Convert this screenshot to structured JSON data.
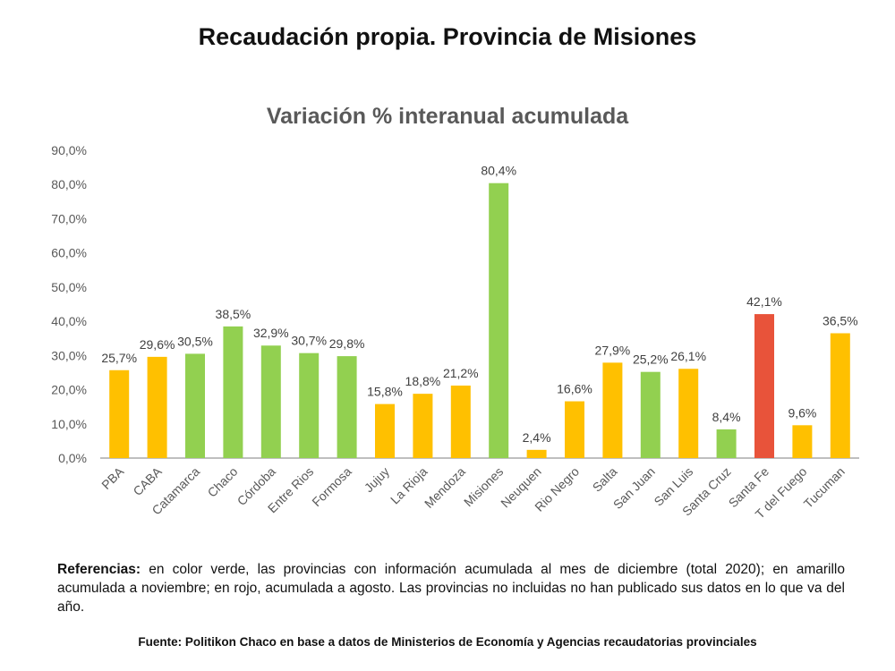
{
  "header": {
    "title": "Recaudación propia. Provincia de Misiones"
  },
  "chart_data": {
    "type": "bar",
    "title": "Variación % interanual acumulada",
    "xlabel": "",
    "ylabel": "",
    "ylim": [
      0,
      90
    ],
    "yticks": [
      "0,0%",
      "10,0%",
      "20,0%",
      "30,0%",
      "40,0%",
      "50,0%",
      "60,0%",
      "70,0%",
      "80,0%",
      "90,0%"
    ],
    "categories": [
      "PBA",
      "CABA",
      "Catamarca",
      "Chaco",
      "Córdoba",
      "Entre Rios",
      "Formosa",
      "Jujuy",
      "La Rioja",
      "Mendoza",
      "Misiones",
      "Neuquen",
      "Rio Negro",
      "Salta",
      "San Juan",
      "San Luis",
      "Santa Cruz",
      "Santa Fe",
      "T del Fuego",
      "Tucuman"
    ],
    "values": [
      25.7,
      29.6,
      30.5,
      38.5,
      32.9,
      30.7,
      29.8,
      15.8,
      18.8,
      21.2,
      80.4,
      2.4,
      16.6,
      27.9,
      25.2,
      26.1,
      8.4,
      42.1,
      9.6,
      36.5
    ],
    "labels": [
      "25,7%",
      "29,6%",
      "30,5%",
      "38,5%",
      "32,9%",
      "30,7%",
      "29,8%",
      "15,8%",
      "18,8%",
      "21,2%",
      "80,4%",
      "2,4%",
      "16,6%",
      "27,9%",
      "25,2%",
      "26,1%",
      "8,4%",
      "42,1%",
      "9,6%",
      "36,5%"
    ],
    "status": [
      "nov",
      "nov",
      "dic",
      "dic",
      "dic",
      "dic",
      "dic",
      "nov",
      "nov",
      "nov",
      "dic",
      "nov",
      "nov",
      "nov",
      "dic",
      "nov",
      "dic",
      "ago",
      "nov",
      "nov"
    ],
    "colors": {
      "dic": "#92D050",
      "nov": "#FFC000",
      "ago": "#E8533A"
    },
    "grid": false,
    "legend": "none"
  },
  "notes": {
    "references_label": "Referencias:",
    "references_text": " en color verde, las provincias con información acumulada al mes de diciembre (total 2020); en amarillo acumulada a noviembre; en rojo, acumulada a agosto. Las provincias no incluidas no han publicado sus datos en lo que va del año.",
    "source": "Fuente: Politikon Chaco en base a datos de Ministerios de Economía y Agencias recaudatorias provinciales"
  }
}
